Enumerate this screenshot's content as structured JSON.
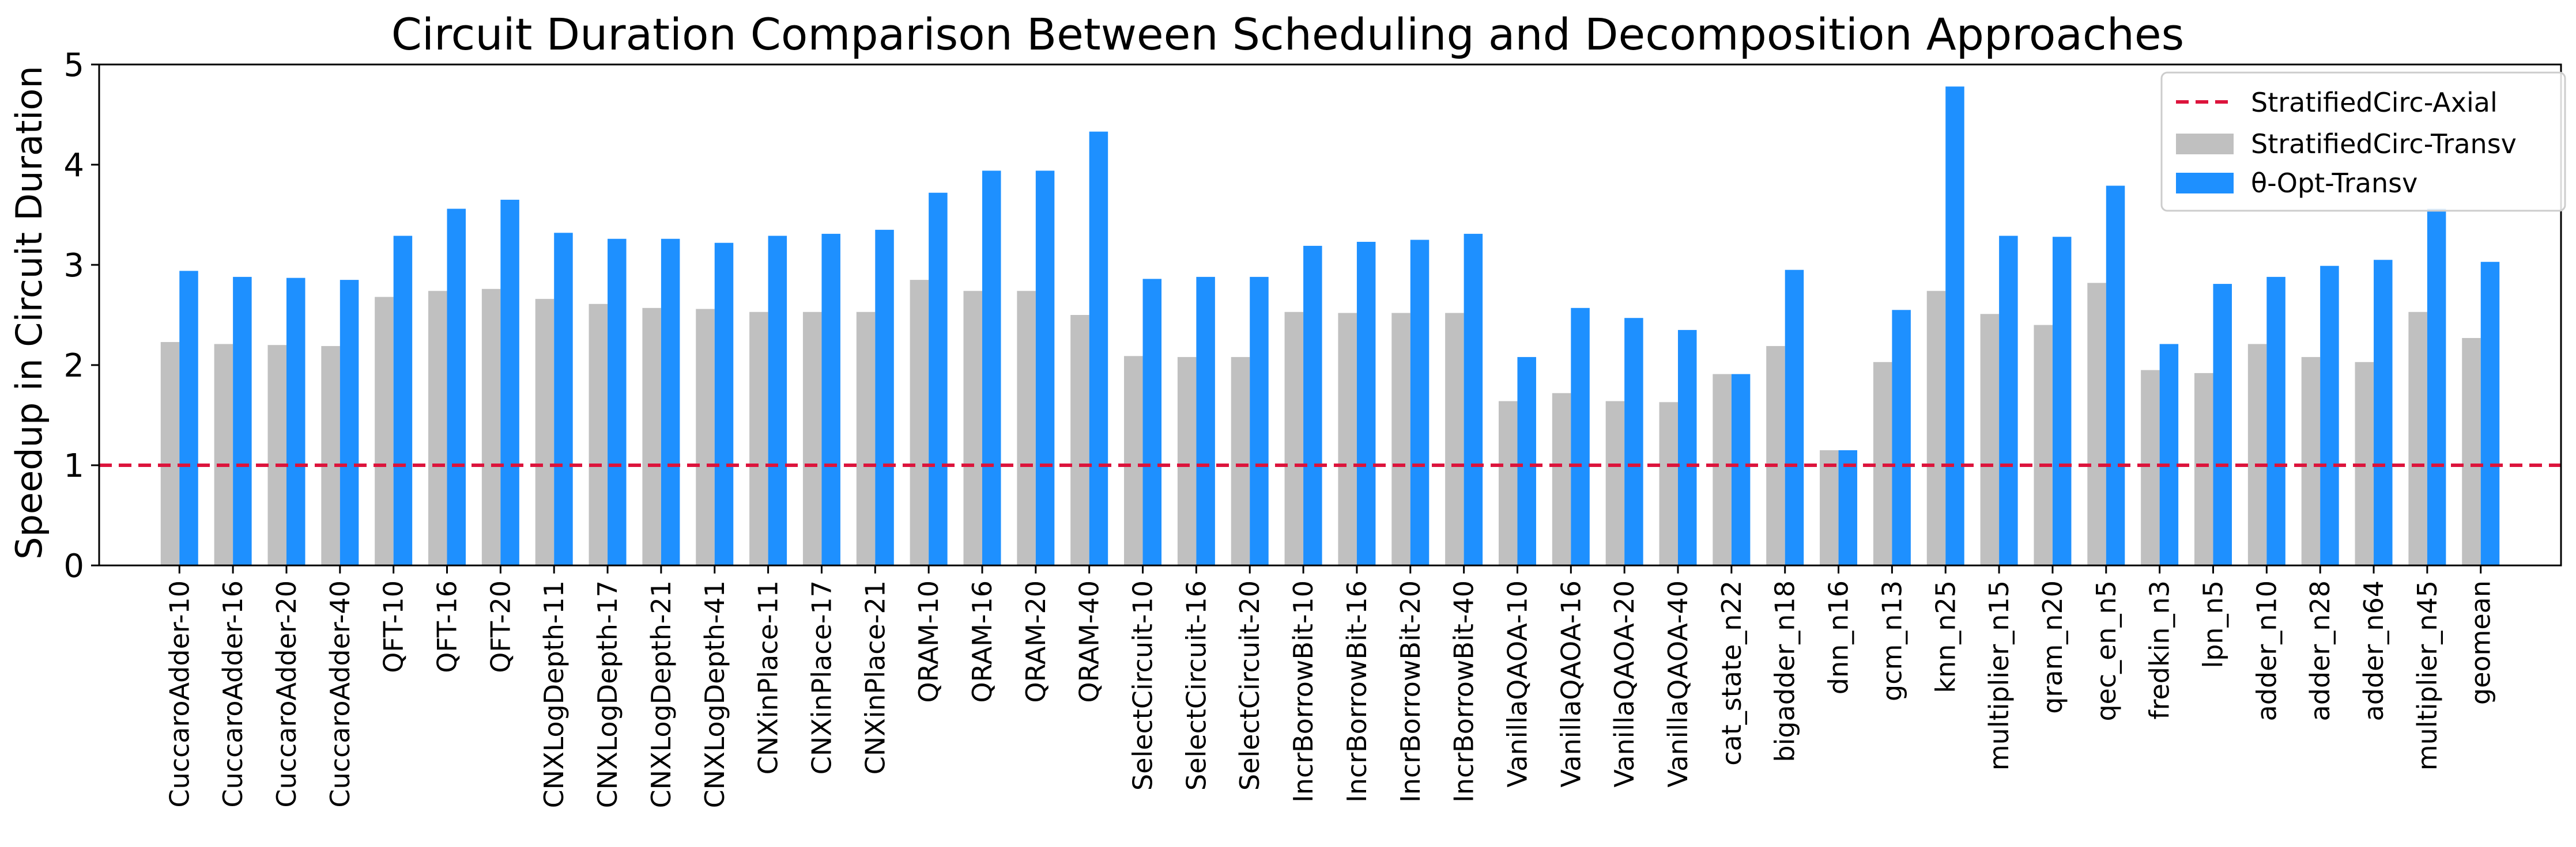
{
  "chart_data": {
    "type": "bar",
    "title": "Circuit Duration Comparison Between Scheduling and Decomposition Approaches",
    "xlabel": "",
    "ylabel": "Speedup in Circuit Duration",
    "ylim": [
      0,
      5
    ],
    "yticks": [
      0,
      1,
      2,
      3,
      4,
      5
    ],
    "grid": false,
    "legend_position": "top-right",
    "categories": [
      "CuccaroAdder-10",
      "CuccaroAdder-16",
      "CuccaroAdder-20",
      "CuccaroAdder-40",
      "QFT-10",
      "QFT-16",
      "QFT-20",
      "CNXLogDepth-11",
      "CNXLogDepth-17",
      "CNXLogDepth-21",
      "CNXLogDepth-41",
      "CNXinPlace-11",
      "CNXinPlace-17",
      "CNXinPlace-21",
      "QRAM-10",
      "QRAM-16",
      "QRAM-20",
      "QRAM-40",
      "SelectCircuit-10",
      "SelectCircuit-16",
      "SelectCircuit-20",
      "IncrBorrowBit-10",
      "IncrBorrowBit-16",
      "IncrBorrowBit-20",
      "IncrBorrowBit-40",
      "VanillaQAOA-10",
      "VanillaQAOA-16",
      "VanillaQAOA-20",
      "VanillaQAOA-40",
      "cat_state_n22",
      "bigadder_n18",
      "dnn_n16",
      "gcm_n13",
      "knn_n25",
      "multiplier_n15",
      "qram_n20",
      "qec_en_n5",
      "fredkin_n3",
      "lpn_n5",
      "adder_n10",
      "adder_n28",
      "adder_n64",
      "multiplier_n45",
      "geomean"
    ],
    "series": [
      {
        "name": "StratifiedCirc-Transv",
        "color": "#c0c0c0",
        "values": [
          2.23,
          2.21,
          2.2,
          2.19,
          2.68,
          2.74,
          2.76,
          2.66,
          2.61,
          2.57,
          2.56,
          2.53,
          2.53,
          2.53,
          2.85,
          2.74,
          2.74,
          2.5,
          2.09,
          2.08,
          2.08,
          2.53,
          2.52,
          2.52,
          2.52,
          1.64,
          1.72,
          1.64,
          1.63,
          1.91,
          2.19,
          1.15,
          2.03,
          2.74,
          2.51,
          2.4,
          2.82,
          1.95,
          1.92,
          2.21,
          2.08,
          2.03,
          2.53,
          2.27
        ]
      },
      {
        "name": "θ-Opt-Transv",
        "color": "#1e90ff",
        "values": [
          2.94,
          2.88,
          2.87,
          2.85,
          3.29,
          3.56,
          3.65,
          3.32,
          3.26,
          3.26,
          3.22,
          3.29,
          3.31,
          3.35,
          3.72,
          3.94,
          3.94,
          4.33,
          2.86,
          2.88,
          2.88,
          3.19,
          3.23,
          3.25,
          3.31,
          2.08,
          2.57,
          2.47,
          2.35,
          1.91,
          2.95,
          1.15,
          2.55,
          4.78,
          3.29,
          3.28,
          3.79,
          2.21,
          2.81,
          2.88,
          2.99,
          3.05,
          3.56,
          3.03
        ]
      }
    ],
    "reference_line": {
      "name": "StratifiedCirc-Axial",
      "value": 1,
      "color": "#dc143c",
      "style": "dashed"
    }
  }
}
